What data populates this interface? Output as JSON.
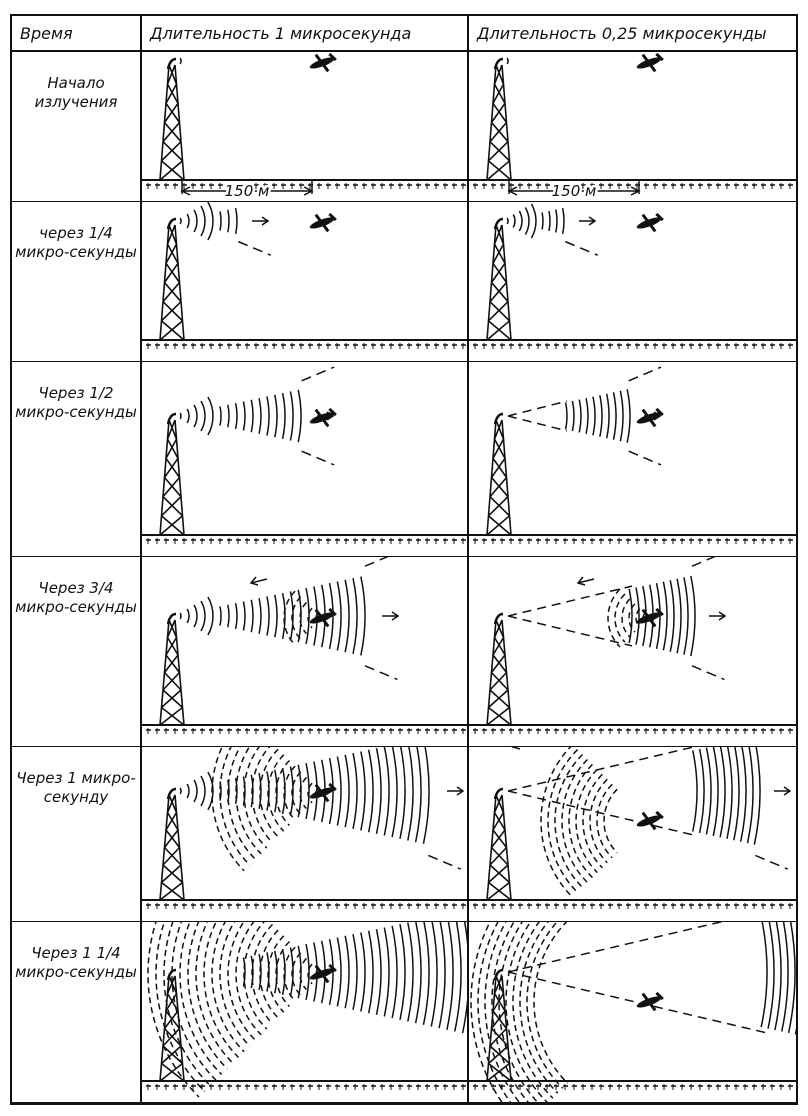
{
  "header": {
    "time": "Время",
    "col1": "Длительность 1 микросекунда",
    "col2": "Длительность 0,25 микросекунды"
  },
  "rows": [
    {
      "label": "Начало излучения"
    },
    {
      "label": "через 1/4 микро-секунды"
    },
    {
      "label": "Через 1/2 микро-секунды"
    },
    {
      "label": "Через 3/4 микро-секунды"
    },
    {
      "label": "Через 1 микро-секунду"
    },
    {
      "label": "Через 1 1/4 микро-секунды"
    }
  ],
  "distance_label": "150 м",
  "pulse_durations_us": [
    1,
    0.25
  ],
  "elapsed_times_us": [
    0,
    0.25,
    0.5,
    0.75,
    1,
    1.25
  ]
}
